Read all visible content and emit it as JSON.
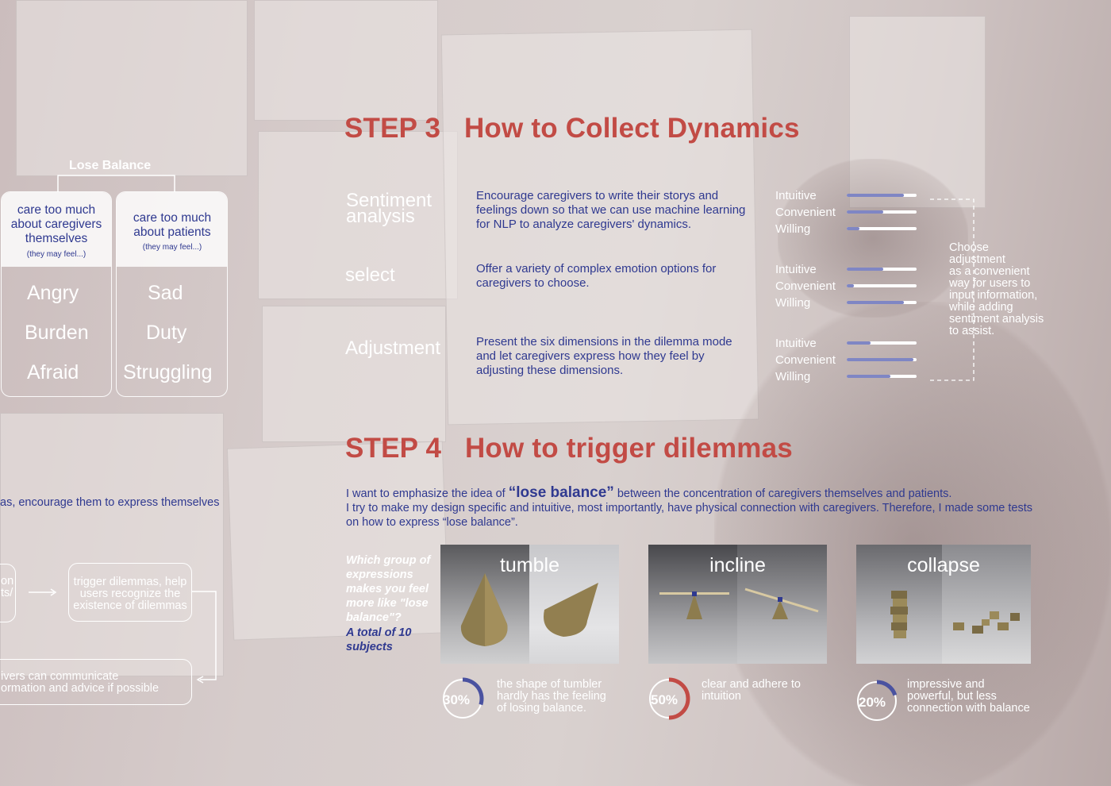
{
  "colors": {
    "accent_red": "#c24b45",
    "text_blue": "#2f3990",
    "bar_fill": "#7f86c4",
    "ring_red": "#c24b45",
    "ring_blue": "#4a52a0"
  },
  "lose_balance": {
    "title": "Lose Balance",
    "left": {
      "heading": "care too much about caregivers themselves",
      "sub": "(they may feel...)",
      "emotions": [
        "Angry",
        "Burden",
        "Afraid"
      ]
    },
    "right": {
      "heading": "care too much about patients",
      "sub": "(they may feel...)",
      "emotions": [
        "Sad",
        "Duty",
        "Struggling"
      ]
    }
  },
  "flow": {
    "encourage": "as, encourage them to express themselves",
    "left_cut": "on\nts/",
    "trigger": "trigger dilemmas, help users recognize the existence of dilemmas",
    "communicate": "ivers can communicate\normation and advice if possible"
  },
  "step3": {
    "title": "STEP 3   How to Collect Dynamics",
    "methods": [
      {
        "name": "Sentiment\nanalysis",
        "desc": "Encourage caregivers to write their storys and feelings down so that we can use machine learning for NLP to analyze caregivers' dynamics.",
        "metrics": [
          {
            "label": "Intuitive",
            "value": 0.82
          },
          {
            "label": "Convenient",
            "value": 0.52
          },
          {
            "label": "Willing",
            "value": 0.18
          }
        ]
      },
      {
        "name": "select",
        "desc": "Offer a variety of complex emotion options for caregivers to choose.",
        "metrics": [
          {
            "label": "Intuitive",
            "value": 0.52
          },
          {
            "label": "Convenient",
            "value": 0.1
          },
          {
            "label": "Willing",
            "value": 0.82
          }
        ]
      },
      {
        "name": "Adjustment",
        "desc": "Present the six dimensions in the dilemma mode and let caregivers express how they feel by adjusting these dimensions.",
        "metrics": [
          {
            "label": "Intuitive",
            "value": 0.34
          },
          {
            "label": "Convenient",
            "value": 0.96
          },
          {
            "label": "Willing",
            "value": 0.63
          }
        ]
      }
    ],
    "choose_note": "Choose\nadjustment\nas a convenient\nway for users to\ninput information,\nwhile adding\nsentiment analysis\nto assist."
  },
  "step4": {
    "title": "STEP 4   How to trigger dilemmas",
    "intro_pre": "I want to emphasize the idea of ",
    "intro_em": "“lose balance”",
    "intro_post": " between the concentration of caregivers themselves and patients.",
    "intro_line2": "I try to make my design specific and intuitive, most importantly, have physical connection with caregivers. Therefore, I made some tests on how to express “lose balance”.",
    "question": "Which group of expressions makes you feel more like \"lose balance\"?",
    "subjects": "A total of 10 subjects",
    "tests": [
      {
        "name": "tumble",
        "percent": "30%",
        "value": 0.3,
        "ring_color": "#4a52a0",
        "note": "the shape of tumbler\nhardly has the feeling\nof losing balance."
      },
      {
        "name": "incline",
        "percent": "50%",
        "value": 0.5,
        "ring_color": "#c24b45",
        "note": "clear and adhere to\nintuition"
      },
      {
        "name": "collapse",
        "percent": "20%",
        "value": 0.2,
        "ring_color": "#4a52a0",
        "note": "impressive and\npowerful, but less\nconnection with balance"
      }
    ]
  }
}
